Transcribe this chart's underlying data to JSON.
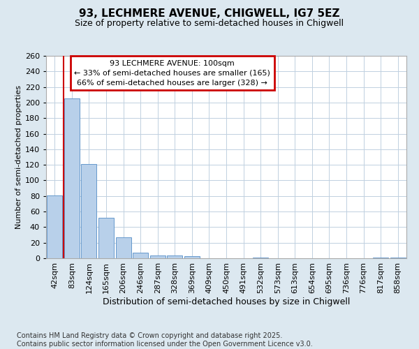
{
  "title1": "93, LECHMERE AVENUE, CHIGWELL, IG7 5EZ",
  "title2": "Size of property relative to semi-detached houses in Chigwell",
  "xlabel": "Distribution of semi-detached houses by size in Chigwell",
  "ylabel": "Number of semi-detached properties",
  "categories": [
    "42sqm",
    "83sqm",
    "124sqm",
    "165sqm",
    "206sqm",
    "246sqm",
    "287sqm",
    "328sqm",
    "369sqm",
    "409sqm",
    "450sqm",
    "491sqm",
    "532sqm",
    "573sqm",
    "613sqm",
    "654sqm",
    "695sqm",
    "736sqm",
    "776sqm",
    "817sqm",
    "858sqm"
  ],
  "values": [
    81,
    205,
    121,
    52,
    27,
    7,
    4,
    4,
    3,
    0,
    0,
    0,
    1,
    0,
    0,
    0,
    0,
    0,
    0,
    1,
    1
  ],
  "bar_color": "#b8d0ea",
  "bar_edge_color": "#6699cc",
  "vline_x": 0.5,
  "vline_color": "#cc0000",
  "annotation_text": "93 LECHMERE AVENUE: 100sqm\n← 33% of semi-detached houses are smaller (165)\n66% of semi-detached houses are larger (328) →",
  "annotation_box_color": "#ffffff",
  "annotation_box_edge": "#cc0000",
  "ylim": [
    0,
    260
  ],
  "yticks": [
    0,
    20,
    40,
    60,
    80,
    100,
    120,
    140,
    160,
    180,
    200,
    220,
    240,
    260
  ],
  "footer": "Contains HM Land Registry data © Crown copyright and database right 2025.\nContains public sector information licensed under the Open Government Licence v3.0.",
  "bg_color": "#dce8f0",
  "plot_bg_color": "#ffffff",
  "grid_color": "#c0d0e0",
  "title1_fontsize": 11,
  "title2_fontsize": 9,
  "ylabel_fontsize": 8,
  "xlabel_fontsize": 9,
  "tick_fontsize": 8,
  "xtick_fontsize": 8,
  "annotation_fontsize": 8,
  "footer_fontsize": 7
}
